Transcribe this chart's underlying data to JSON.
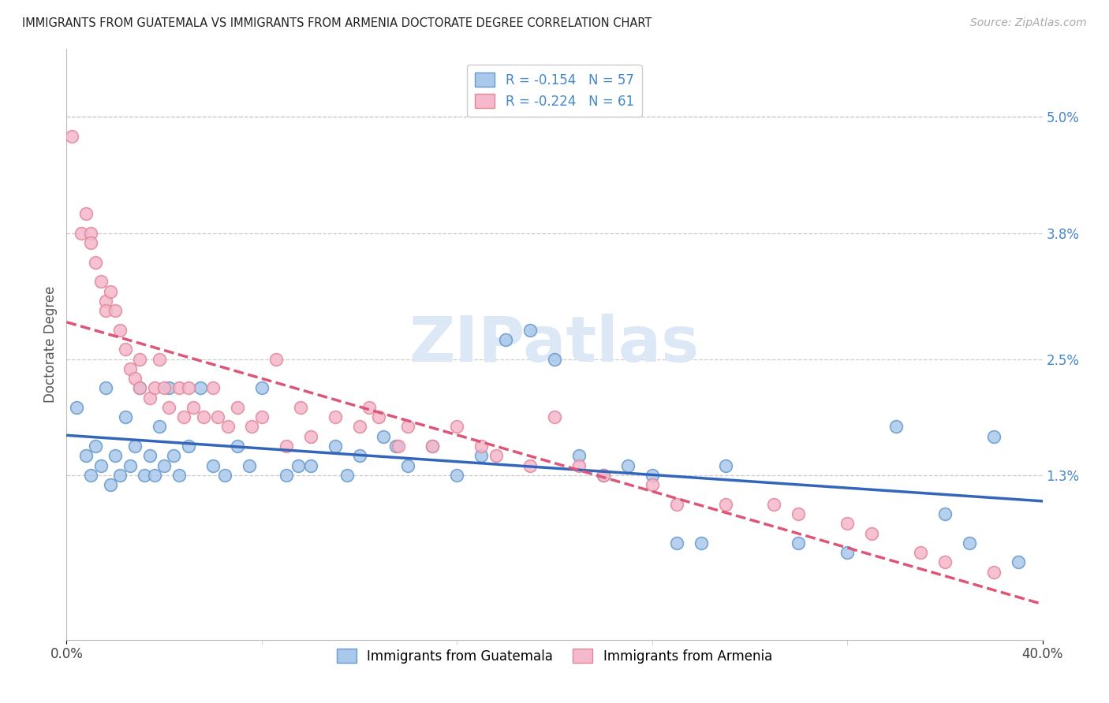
{
  "title": "IMMIGRANTS FROM GUATEMALA VS IMMIGRANTS FROM ARMENIA DOCTORATE DEGREE CORRELATION CHART",
  "source": "Source: ZipAtlas.com",
  "ylabel": "Doctorate Degree",
  "right_yticks": [
    "5.0%",
    "3.8%",
    "2.5%",
    "1.3%"
  ],
  "right_ytick_vals": [
    0.05,
    0.038,
    0.025,
    0.013
  ],
  "xlim": [
    0.0,
    0.4
  ],
  "ylim": [
    -0.004,
    0.057
  ],
  "series1_name": "Immigrants from Guatemala",
  "series2_name": "Immigrants from Armenia",
  "series1_color": "#aac8ea",
  "series2_color": "#f5b8cc",
  "series1_edge": "#6699cc",
  "series2_edge": "#e08898",
  "line1_color": "#3366bb",
  "line2_color": "#dd5577",
  "watermark": "ZIPatlas",
  "watermark_color": "#dce8f5",
  "background_color": "#ffffff",
  "grid_color": "#cccccc",
  "title_color": "#222222",
  "right_axis_color": "#4488cc",
  "legend1_label": "R = -0.154   N = 57",
  "legend2_label": "R = -0.224   N = 61",
  "legend1_patch_color": "#aac8ea",
  "legend2_patch_color": "#f5b8cc",
  "scatter1_x": [
    0.004,
    0.008,
    0.01,
    0.012,
    0.014,
    0.016,
    0.018,
    0.02,
    0.022,
    0.024,
    0.026,
    0.028,
    0.03,
    0.032,
    0.034,
    0.036,
    0.038,
    0.04,
    0.042,
    0.044,
    0.046,
    0.05,
    0.055,
    0.06,
    0.065,
    0.07,
    0.075,
    0.08,
    0.09,
    0.095,
    0.1,
    0.11,
    0.115,
    0.12,
    0.13,
    0.135,
    0.14,
    0.15,
    0.16,
    0.17,
    0.18,
    0.19,
    0.2,
    0.21,
    0.22,
    0.23,
    0.24,
    0.25,
    0.26,
    0.27,
    0.3,
    0.32,
    0.34,
    0.36,
    0.37,
    0.38,
    0.39
  ],
  "scatter1_y": [
    0.02,
    0.015,
    0.013,
    0.016,
    0.014,
    0.022,
    0.012,
    0.015,
    0.013,
    0.019,
    0.014,
    0.016,
    0.022,
    0.013,
    0.015,
    0.013,
    0.018,
    0.014,
    0.022,
    0.015,
    0.013,
    0.016,
    0.022,
    0.014,
    0.013,
    0.016,
    0.014,
    0.022,
    0.013,
    0.014,
    0.014,
    0.016,
    0.013,
    0.015,
    0.017,
    0.016,
    0.014,
    0.016,
    0.013,
    0.015,
    0.027,
    0.028,
    0.025,
    0.015,
    0.013,
    0.014,
    0.013,
    0.006,
    0.006,
    0.014,
    0.006,
    0.005,
    0.018,
    0.009,
    0.006,
    0.017,
    0.004
  ],
  "scatter2_x": [
    0.002,
    0.006,
    0.008,
    0.01,
    0.01,
    0.012,
    0.014,
    0.016,
    0.016,
    0.018,
    0.02,
    0.022,
    0.024,
    0.026,
    0.028,
    0.03,
    0.03,
    0.034,
    0.036,
    0.038,
    0.04,
    0.042,
    0.046,
    0.048,
    0.05,
    0.052,
    0.056,
    0.06,
    0.062,
    0.066,
    0.07,
    0.076,
    0.08,
    0.086,
    0.09,
    0.096,
    0.1,
    0.11,
    0.12,
    0.124,
    0.128,
    0.136,
    0.14,
    0.15,
    0.16,
    0.17,
    0.176,
    0.19,
    0.2,
    0.21,
    0.22,
    0.24,
    0.25,
    0.27,
    0.29,
    0.3,
    0.32,
    0.33,
    0.35,
    0.36,
    0.38
  ],
  "scatter2_y": [
    0.048,
    0.038,
    0.04,
    0.038,
    0.037,
    0.035,
    0.033,
    0.031,
    0.03,
    0.032,
    0.03,
    0.028,
    0.026,
    0.024,
    0.023,
    0.025,
    0.022,
    0.021,
    0.022,
    0.025,
    0.022,
    0.02,
    0.022,
    0.019,
    0.022,
    0.02,
    0.019,
    0.022,
    0.019,
    0.018,
    0.02,
    0.018,
    0.019,
    0.025,
    0.016,
    0.02,
    0.017,
    0.019,
    0.018,
    0.02,
    0.019,
    0.016,
    0.018,
    0.016,
    0.018,
    0.016,
    0.015,
    0.014,
    0.019,
    0.014,
    0.013,
    0.012,
    0.01,
    0.01,
    0.01,
    0.009,
    0.008,
    0.007,
    0.005,
    0.004,
    0.003
  ]
}
